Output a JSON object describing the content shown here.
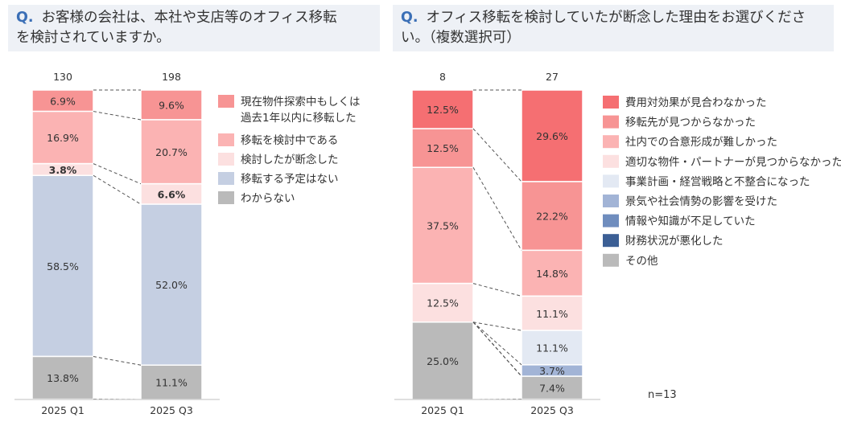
{
  "left": {
    "q_mark": "Q.",
    "question_line1": "お客様の会社は、本社や支店等のオフィス移転",
    "question_line2": "を検討されていますか。",
    "chart_data": {
      "type": "bar",
      "stacked": true,
      "percent": true,
      "categories": [
        "2025 Q1",
        "2025 Q3"
      ],
      "totals": [
        "130",
        "198"
      ],
      "series": [
        {
          "name": "現在物件探索中もしくは|過去1年以内に移転した",
          "color": "#F79494",
          "values": [
            6.9,
            9.6
          ]
        },
        {
          "name": "移転を検討中である",
          "color": "#FBB3B3",
          "values": [
            16.9,
            20.7
          ]
        },
        {
          "name": "検討したが断念した",
          "color": "#FCE0E0",
          "values": [
            3.8,
            6.6
          ],
          "bold": true
        },
        {
          "name": "移転する予定はない",
          "color": "#C5CFE2",
          "values": [
            58.5,
            52.0
          ]
        },
        {
          "name": "わからない",
          "color": "#BABABA",
          "values": [
            13.8,
            11.1
          ]
        }
      ],
      "ylim": [
        0,
        100
      ]
    }
  },
  "right": {
    "q_mark": "Q.",
    "question_line1": "オフィス移転を検討していたが断念した理由をお選びくださ",
    "question_line2": "い。（複数選択可）",
    "note": "n=13",
    "chart_data": {
      "type": "bar",
      "stacked": true,
      "percent": true,
      "categories": [
        "2025 Q1",
        "2025 Q3"
      ],
      "totals": [
        "8",
        "27"
      ],
      "series": [
        {
          "name": "費用対効果が見合わなかった",
          "color": "#F56F72",
          "values": [
            12.5,
            29.6
          ]
        },
        {
          "name": "移転先が見つからなかった",
          "color": "#F79494",
          "values": [
            12.5,
            22.2
          ]
        },
        {
          "name": "社内での合意形成が難しかった",
          "color": "#FBB3B3",
          "values": [
            37.5,
            14.8
          ]
        },
        {
          "name": "適切な物件・パートナーが見つからなかった",
          "color": "#FCE0E0",
          "values": [
            12.5,
            11.1
          ]
        },
        {
          "name": "事業計画・経営戦略と不整合になった",
          "color": "#E3E9F3",
          "values": [
            0,
            11.1
          ]
        },
        {
          "name": "景気や社会情勢の影響を受けた",
          "color": "#A2B4D6",
          "values": [
            0,
            3.7
          ]
        },
        {
          "name": "情報や知識が不足していた",
          "color": "#6F8DBE",
          "values": [
            0,
            0
          ]
        },
        {
          "name": "財務状況が悪化した",
          "color": "#3C5F95",
          "values": [
            0,
            0
          ]
        },
        {
          "name": "その他",
          "color": "#BABABA",
          "values": [
            25.0,
            7.4
          ]
        }
      ],
      "ylim": [
        0,
        100
      ]
    }
  }
}
